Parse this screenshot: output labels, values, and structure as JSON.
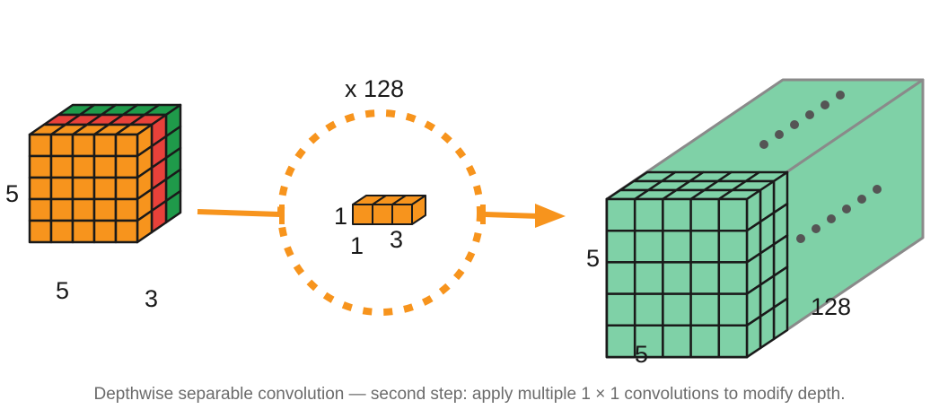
{
  "input_block": {
    "height_label": "5",
    "width_label": "5",
    "depth_label": "3",
    "colors": {
      "front": "#f7941d",
      "mid": "#e8413a",
      "back": "#1f9a4a",
      "stroke": "#1a1a1a"
    }
  },
  "kernel": {
    "count_label": "x 128",
    "height_label": "1",
    "width_label": "1",
    "depth_label": "3",
    "colors": {
      "face": "#f7941d",
      "ring": "#f7941d"
    }
  },
  "output_block": {
    "height_label": "5",
    "width_label": "5",
    "depth_label": "128",
    "colors": {
      "face": "#7fd1a7",
      "edge": "#8a8a8a",
      "dots": "#555555"
    }
  },
  "flow": {
    "arrow_color": "#f7941d"
  },
  "caption": "Depthwise separable convolution — second step: apply multiple 1 × 1 convolutions to modify depth."
}
